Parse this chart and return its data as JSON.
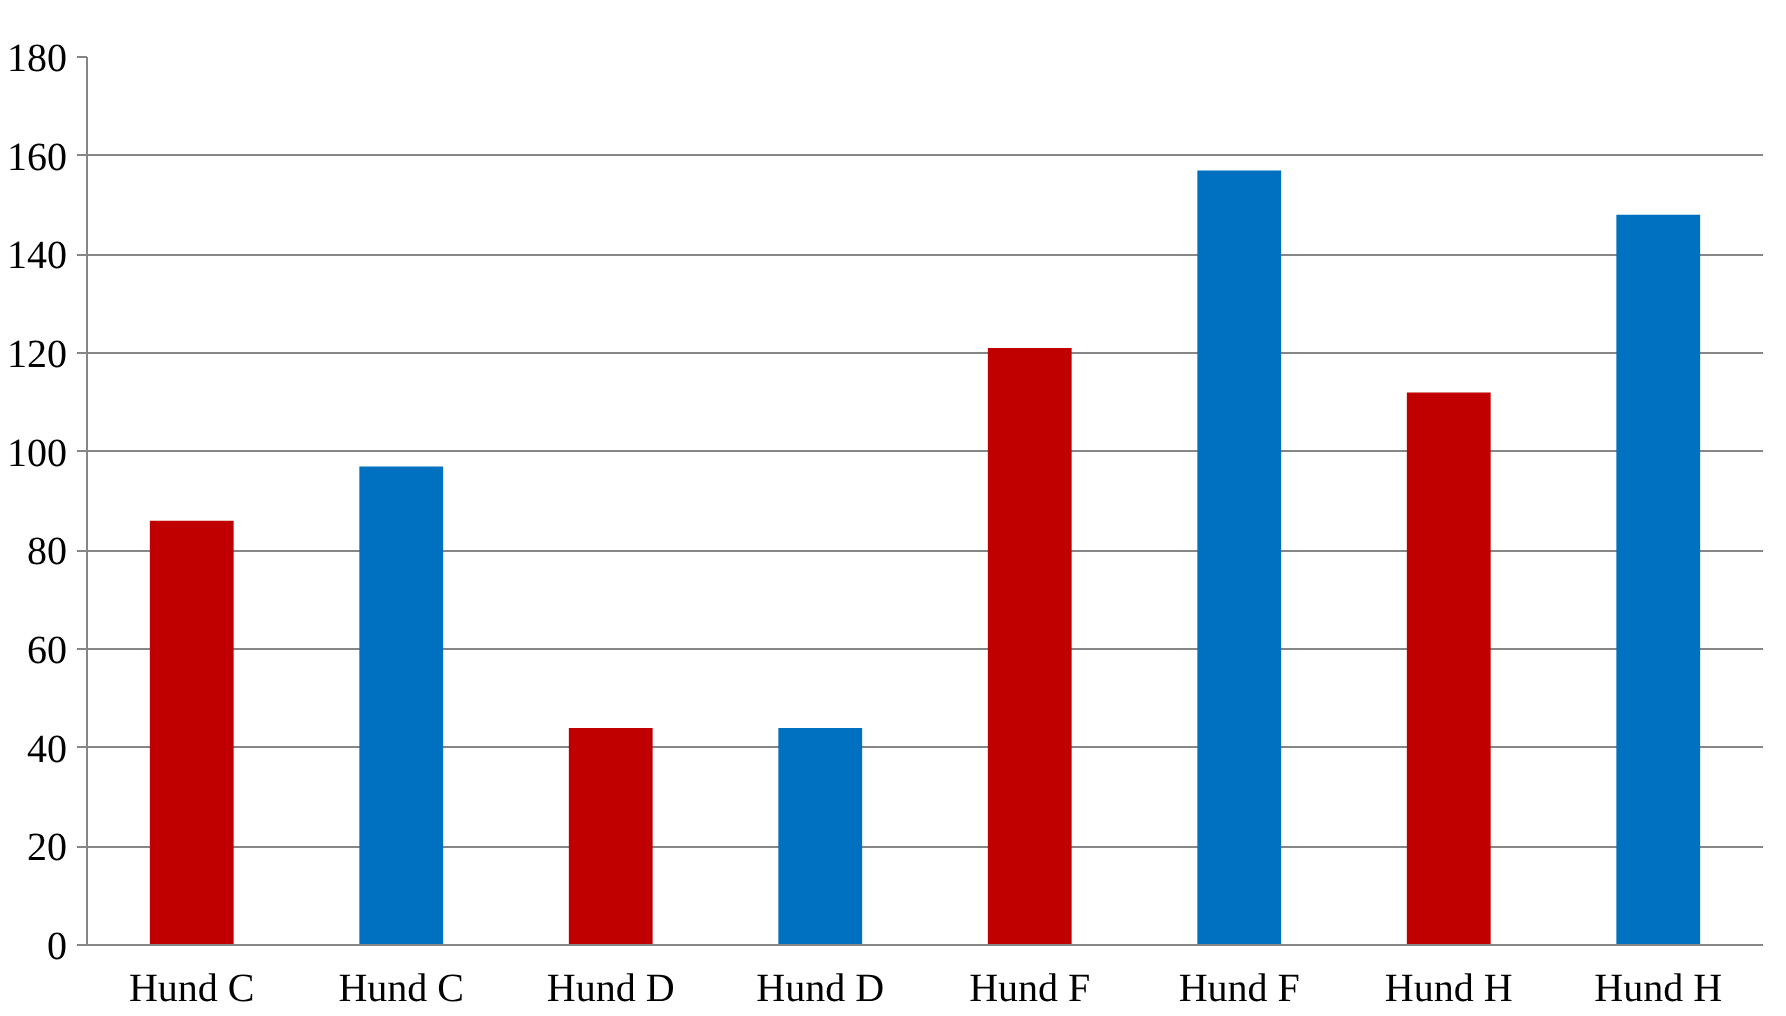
{
  "chart_data": {
    "type": "bar",
    "categories": [
      "Hund C",
      "Hund C",
      "Hund D",
      "Hund D",
      "Hund F",
      "Hund F",
      "Hund H",
      "Hund H"
    ],
    "values": [
      86,
      97,
      44,
      44,
      121,
      157,
      112,
      148
    ],
    "colors": [
      "#c00000",
      "#0070c0",
      "#c00000",
      "#0070c0",
      "#c00000",
      "#0070c0",
      "#c00000",
      "#0070c0"
    ],
    "ylim": [
      0,
      180
    ],
    "yticks": [
      0,
      20,
      40,
      60,
      80,
      100,
      120,
      140,
      160,
      180
    ],
    "grid": "y"
  }
}
